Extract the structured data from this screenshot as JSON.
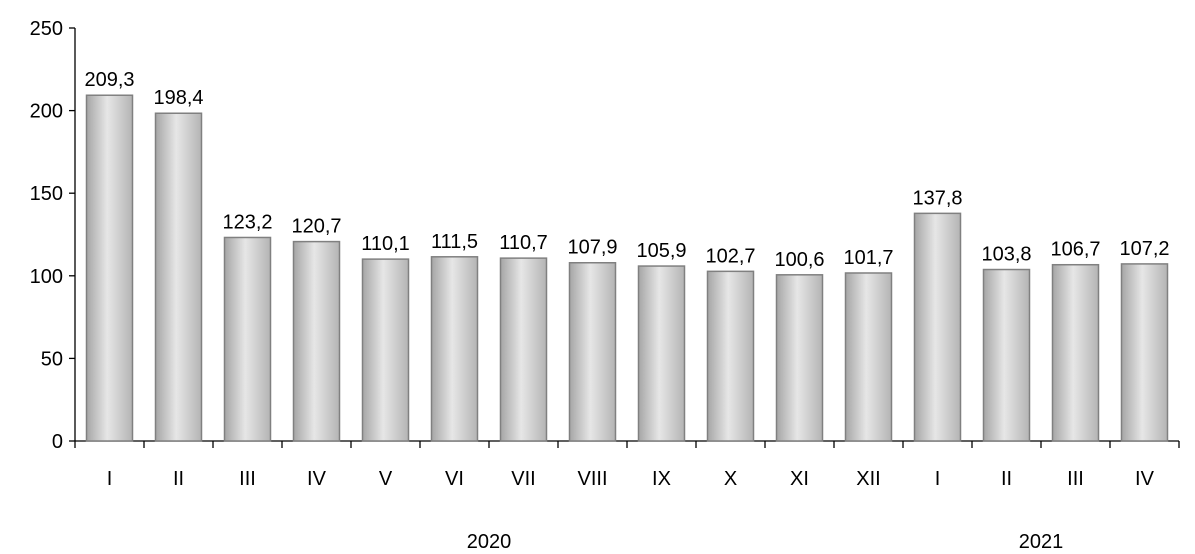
{
  "chart_data": {
    "type": "bar",
    "categories": [
      "I",
      "II",
      "III",
      "IV",
      "V",
      "VI",
      "VII",
      "VIII",
      "IX",
      "X",
      "XI",
      "XII",
      "I",
      "II",
      "III",
      "IV"
    ],
    "values": [
      209.3,
      198.4,
      123.2,
      120.7,
      110.1,
      111.5,
      110.7,
      107.9,
      105.9,
      102.7,
      100.6,
      101.7,
      137.8,
      103.8,
      106.7,
      107.2
    ],
    "data_labels": [
      "209,3",
      "198,4",
      "123,2",
      "120,7",
      "110,1",
      "111,5",
      "110,7",
      "107,9",
      "105,9",
      "102,7",
      "100,6",
      "101,7",
      "137,8",
      "103,8",
      "106,7",
      "107,2"
    ],
    "groups": [
      {
        "label": "2020",
        "start": 0,
        "end": 11
      },
      {
        "label": "2021",
        "start": 12,
        "end": 15
      }
    ],
    "y_ticks": [
      "0",
      "50",
      "100",
      "150",
      "200",
      "250"
    ],
    "ylim": [
      0,
      250
    ],
    "title": "",
    "xlabel": "",
    "ylabel": "",
    "grid": false,
    "legend": "none",
    "bar_color": "#c8c8c8",
    "bar_edge_color": "#808080"
  }
}
